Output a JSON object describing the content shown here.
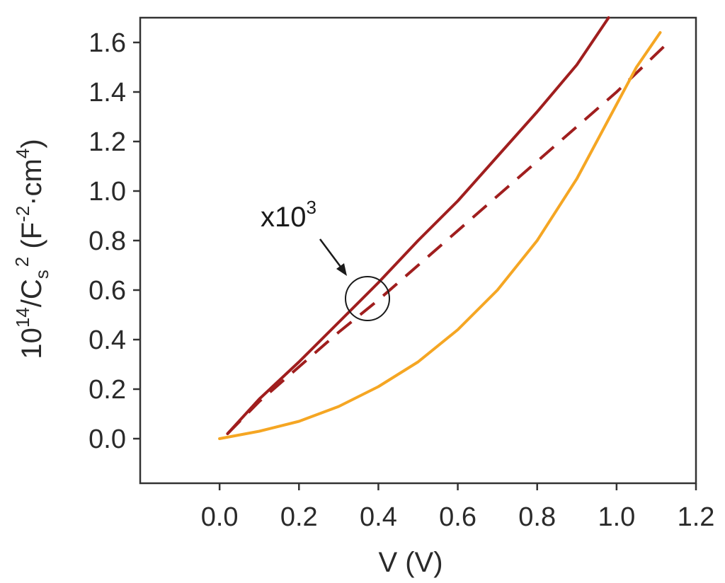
{
  "chart_data": {
    "type": "line",
    "xlabel": "V (V)",
    "ylabel_parts": {
      "pre": "10",
      "exp": "14",
      "mid": "/C",
      "sub": "s",
      "sup2": "2",
      "unit_open": " (F",
      "unit_exp1": "-2",
      "unit_mid": "·cm",
      "unit_exp2": "4",
      "unit_close": ")"
    },
    "xlim": [
      -0.2,
      1.2
    ],
    "ylim": [
      -0.18,
      1.7
    ],
    "x_ticks": [
      0.0,
      0.2,
      0.4,
      0.6,
      0.8,
      1.0,
      1.2
    ],
    "x_tick_labels": [
      "0.0",
      "0.2",
      "0.4",
      "0.6",
      "0.8",
      "1.0",
      "1.2"
    ],
    "y_ticks": [
      0.0,
      0.2,
      0.4,
      0.6,
      0.8,
      1.0,
      1.2,
      1.4,
      1.6
    ],
    "y_tick_labels": [
      "0.0",
      "0.2",
      "0.4",
      "0.6",
      "0.8",
      "1.0",
      "1.2",
      "1.4",
      "1.6"
    ],
    "grid": false,
    "annotation": {
      "base": "x10",
      "exp": "3",
      "target": [
        0.385,
        0.56
      ]
    },
    "series": [
      {
        "color": "#a01e1e",
        "style": "solid",
        "x": [
          0.02,
          0.1,
          0.2,
          0.3,
          0.4,
          0.5,
          0.6,
          0.7,
          0.8,
          0.9,
          0.98
        ],
        "y": [
          0.02,
          0.16,
          0.31,
          0.47,
          0.63,
          0.8,
          0.96,
          1.14,
          1.32,
          1.51,
          1.7
        ]
      },
      {
        "color": "#a01e1e",
        "style": "dashed",
        "x": [
          0.02,
          0.1,
          0.2,
          0.3,
          0.4,
          0.5,
          0.6,
          0.7,
          0.8,
          0.9,
          1.0,
          1.13
        ],
        "y": [
          0.02,
          0.15,
          0.29,
          0.43,
          0.56,
          0.7,
          0.84,
          0.98,
          1.12,
          1.26,
          1.4,
          1.6
        ]
      },
      {
        "color": "#f5a623",
        "style": "solid",
        "x": [
          0.0,
          0.1,
          0.2,
          0.3,
          0.4,
          0.5,
          0.6,
          0.7,
          0.8,
          0.9,
          1.0,
          1.05,
          1.11
        ],
        "y": [
          0.0,
          0.03,
          0.07,
          0.13,
          0.21,
          0.31,
          0.44,
          0.6,
          0.8,
          1.05,
          1.35,
          1.5,
          1.64
        ]
      }
    ]
  }
}
